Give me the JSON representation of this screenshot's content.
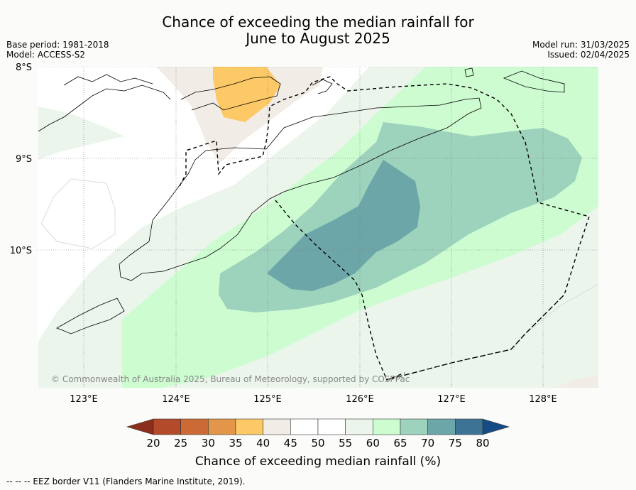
{
  "title_line1": "Chance of exceeding the median rainfall for",
  "title_line2": "June to August 2025",
  "base_period": "Base period: 1981-2018",
  "model": "Model: ACCESS-S2",
  "model_run": "Model run: 31/03/2025",
  "issued": "Issued: 02/04/2025",
  "lat_labels": [
    "8°S",
    "9°S",
    "10°S"
  ],
  "lon_labels": [
    "123°E",
    "124°E",
    "125°E",
    "126°E",
    "127°E",
    "128°E"
  ],
  "copyright": "© Commonwealth of Australia 2025, Bureau of Meteorology, supported by COSPPac",
  "colorbar": {
    "ticks": [
      "20",
      "25",
      "30",
      "35",
      "40",
      "45",
      "50",
      "55",
      "60",
      "65",
      "70",
      "75",
      "80"
    ],
    "colors": [
      "#b34a2a",
      "#cc6a35",
      "#e3964a",
      "#fdc866",
      "#f1ede6",
      "#ffffff",
      "#ffffff",
      "#ebf5eb",
      "#ccfcd0",
      "#9dd2bc",
      "#6da6a8",
      "#3d7496"
    ],
    "low_color": "#8b2e1c",
    "high_color": "#164c85",
    "label": "Chance of exceeding median rainfall (%)"
  },
  "footer": "--  --  -- EEZ border V11 (Flanders Marine Institute, 2019)."
}
